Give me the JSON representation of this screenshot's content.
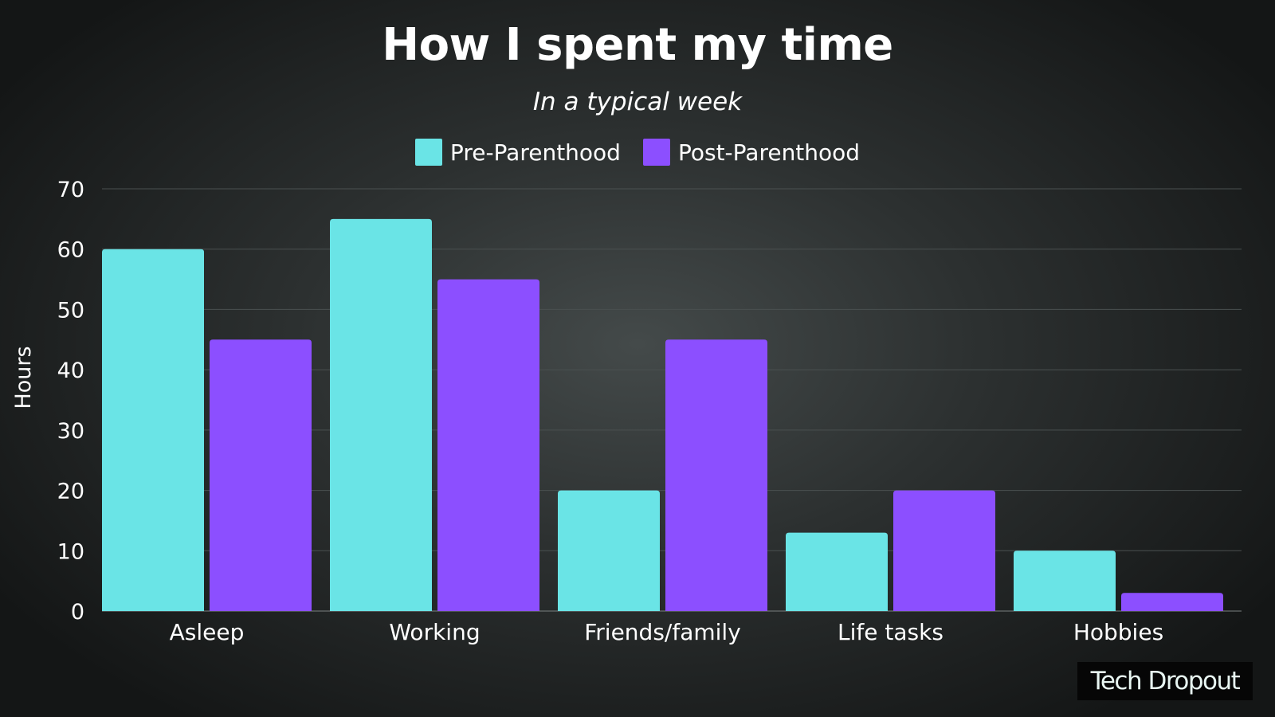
{
  "chart_data": {
    "type": "bar",
    "title": "How I spent my time",
    "subtitle": "In a typical week",
    "xlabel": "",
    "ylabel": "Hours",
    "categories": [
      "Asleep",
      "Working",
      "Friends/family",
      "Life tasks",
      "Hobbies"
    ],
    "series": [
      {
        "name": "Pre-Parenthood",
        "color": "#6ae4e6",
        "values": [
          60,
          65,
          20,
          13,
          10
        ]
      },
      {
        "name": "Post-Parenthood",
        "color": "#8c4fff",
        "values": [
          45,
          55,
          45,
          20,
          3
        ]
      }
    ],
    "ylim": [
      0,
      70
    ],
    "yticks": [
      "0",
      "10",
      "20",
      "30",
      "40",
      "50",
      "60",
      "70"
    ],
    "grid": true,
    "legend": "top-center"
  },
  "watermark": {
    "text": "Tech Dropout"
  }
}
